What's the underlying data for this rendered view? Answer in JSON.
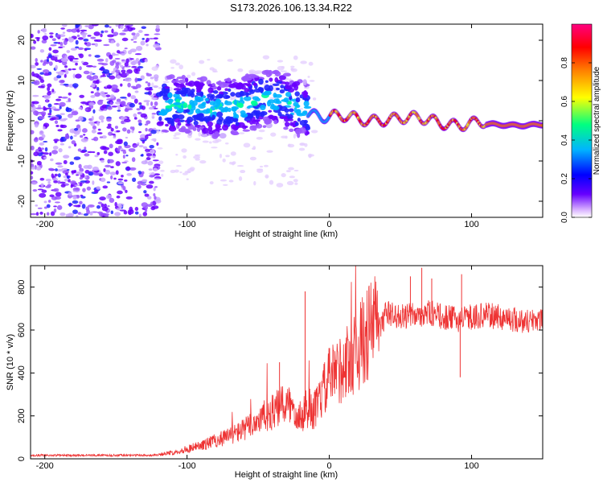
{
  "title": "S173.2026.106.13.34.R22",
  "chart_data": [
    {
      "type": "heatmap",
      "description_kind": "spectrogram",
      "xlabel": "Height of straight line (km)",
      "ylabel": "Frequency (Hz)",
      "xlim": [
        -210,
        150
      ],
      "ylim": [
        -24,
        24
      ],
      "xticks": [
        -200,
        -100,
        0,
        100
      ],
      "yticks": [
        -20,
        -10,
        0,
        10,
        20
      ],
      "colorbar": {
        "label": "Normalized spectral amplitude",
        "range": [
          0,
          1
        ],
        "ticks": [
          "0.0",
          "0.2",
          "0.4",
          "0.6",
          "0.8"
        ],
        "colors": [
          "#ffffff",
          "#6600ff",
          "#0000ff",
          "#00c8ff",
          "#00ff80",
          "#ffff00",
          "#ff8000",
          "#ff0000",
          "#ff0080"
        ]
      },
      "trace_center_hz": [
        {
          "x": -120,
          "y": 4
        },
        {
          "x": -100,
          "y": 4
        },
        {
          "x": -80,
          "y": 3
        },
        {
          "x": -60,
          "y": 4
        },
        {
          "x": -40,
          "y": 6
        },
        {
          "x": -20,
          "y": 3
        },
        {
          "x": 0,
          "y": 1
        },
        {
          "x": 20,
          "y": 0
        },
        {
          "x": 40,
          "y": 1
        },
        {
          "x": 60,
          "y": 0
        },
        {
          "x": 80,
          "y": 0
        },
        {
          "x": 100,
          "y": -1
        },
        {
          "x": 120,
          "y": -1
        },
        {
          "x": 150,
          "y": -1
        }
      ]
    },
    {
      "type": "line",
      "xlabel": "Height of straight line (km)",
      "ylabel": "SNR (10 * v/v)",
      "xlim": [
        -210,
        150
      ],
      "ylim": [
        0,
        900
      ],
      "xticks": [
        -200,
        -100,
        0,
        100
      ],
      "yticks": [
        0,
        200,
        400,
        600,
        800
      ],
      "color": "#ee3333",
      "series": [
        {
          "name": "SNR",
          "x": [
            -210,
            -180,
            -150,
            -125,
            -110,
            -100,
            -90,
            -80,
            -70,
            -60,
            -50,
            -40,
            -30,
            -20,
            -10,
            0,
            10,
            20,
            30,
            35,
            40,
            50,
            60,
            70,
            80,
            90,
            100,
            110,
            120,
            130,
            140,
            150
          ],
          "y": [
            15,
            15,
            15,
            15,
            25,
            40,
            55,
            75,
            95,
            120,
            160,
            190,
            230,
            180,
            200,
            330,
            380,
            450,
            540,
            600,
            680,
            660,
            670,
            680,
            660,
            650,
            660,
            670,
            660,
            650,
            640,
            660
          ]
        }
      ],
      "spikes": [
        {
          "x": -17,
          "y": 780
        },
        {
          "x": -35,
          "y": 450
        },
        {
          "x": -10,
          "y": 320
        },
        {
          "x": 57,
          "y": 850
        },
        {
          "x": 65,
          "y": 890
        },
        {
          "x": 72,
          "y": 840
        },
        {
          "x": 93,
          "y": 860
        },
        {
          "x": 92,
          "y": 380
        }
      ]
    }
  ]
}
